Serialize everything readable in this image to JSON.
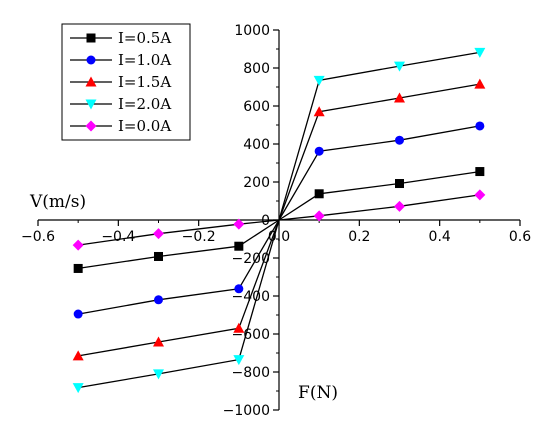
{
  "chart_data": {
    "type": "line",
    "title": "",
    "xlabel": "F(N)",
    "ylabel": "V(m/s)",
    "xlim": [
      -0.6,
      0.6
    ],
    "ylim": [
      -1000,
      1000
    ],
    "x_ticks": [
      -0.6,
      -0.4,
      -0.2,
      0.0,
      0.2,
      0.4,
      0.6
    ],
    "x_tick_labels": [
      "−0.6",
      "−0.4",
      "−0.2",
      "0.0",
      "0.2",
      "0.4",
      "0.6"
    ],
    "y_ticks": [
      -1000,
      -800,
      -600,
      -400,
      -200,
      0,
      200,
      400,
      600,
      800,
      1000
    ],
    "y_tick_labels": [
      "−1000",
      "−800",
      "−600",
      "−400",
      "−200",
      "0",
      "200",
      "400",
      "600",
      "800",
      "1000"
    ],
    "legend_position": "top-left",
    "grid": false,
    "series": [
      {
        "name": "I=0.5A",
        "color": "#000000",
        "marker": "square",
        "x": [
          -0.5,
          -0.3,
          -0.1,
          0.0,
          0.1,
          0.3,
          0.5
        ],
        "y": [
          -255,
          -192,
          -138,
          0,
          138,
          192,
          255
        ]
      },
      {
        "name": "I=1.0A",
        "color": "#0000ff",
        "marker": "circle",
        "x": [
          -0.5,
          -0.3,
          -0.1,
          0.0,
          0.1,
          0.3,
          0.5
        ],
        "y": [
          -495,
          -420,
          -362,
          0,
          362,
          420,
          495
        ]
      },
      {
        "name": "I=1.5A",
        "color": "#ff0000",
        "marker": "triangle-up",
        "x": [
          -0.5,
          -0.3,
          -0.1,
          0.0,
          0.1,
          0.3,
          0.5
        ],
        "y": [
          -715,
          -642,
          -570,
          0,
          570,
          642,
          715
        ]
      },
      {
        "name": "I=2.0A",
        "color": "#00ffff",
        "marker": "triangle-down",
        "x": [
          -0.5,
          -0.3,
          -0.1,
          0.0,
          0.1,
          0.3,
          0.5
        ],
        "y": [
          -882,
          -810,
          -735,
          0,
          735,
          810,
          882
        ]
      },
      {
        "name": "I=0.0A",
        "color": "#ff00ff",
        "marker": "diamond",
        "x": [
          -0.5,
          -0.3,
          -0.1,
          0.0,
          0.1,
          0.3,
          0.5
        ],
        "y": [
          -132,
          -72,
          -22,
          0,
          22,
          72,
          132
        ]
      }
    ]
  }
}
